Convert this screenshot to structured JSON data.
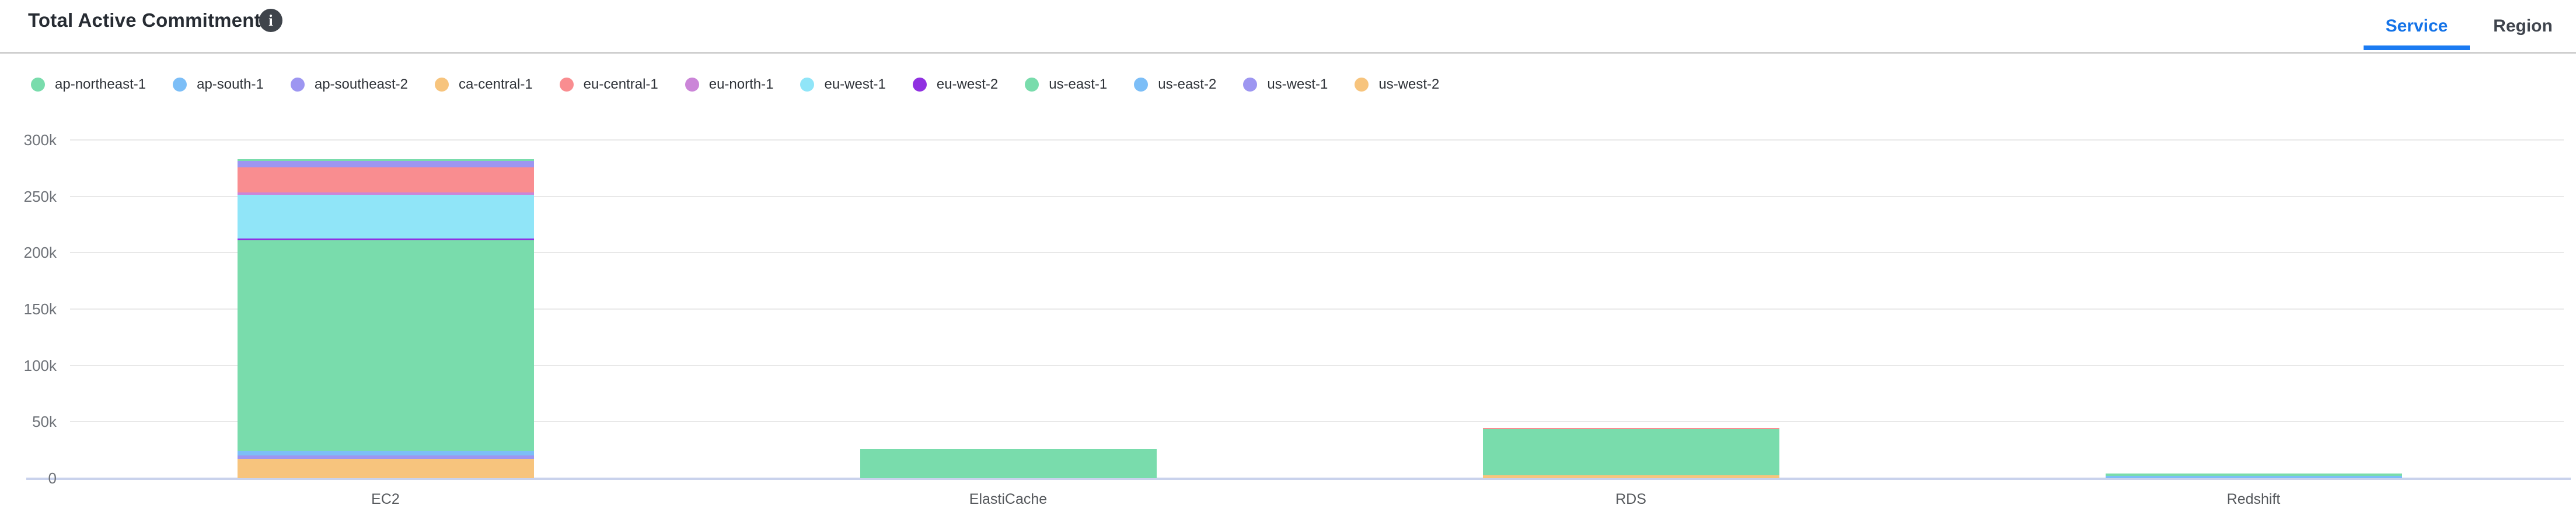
{
  "header": {
    "title": "Total Active Commitments",
    "info_icon": "i",
    "tabs": [
      {
        "label": "Service",
        "active": true
      },
      {
        "label": "Region",
        "active": false
      }
    ],
    "accent_color": "#1473e8"
  },
  "chart_data": {
    "type": "bar",
    "stacked": true,
    "title": "Total Active Commitments",
    "categories": [
      "EC2",
      "ElastiCache",
      "RDS",
      "Redshift"
    ],
    "series": [
      {
        "name": "ap-northeast-1",
        "color": "#79dcac",
        "values": [
          1300,
          0,
          0,
          0
        ]
      },
      {
        "name": "ap-south-1",
        "color": "#7cbef7",
        "values": [
          0,
          0,
          0,
          0
        ]
      },
      {
        "name": "ap-southeast-2",
        "color": "#9d96f1",
        "values": [
          5800,
          0,
          0,
          0
        ]
      },
      {
        "name": "ca-central-1",
        "color": "#f7c47d",
        "values": [
          0,
          0,
          0,
          0
        ]
      },
      {
        "name": "eu-central-1",
        "color": "#f98d90",
        "values": [
          22300,
          0,
          1100,
          0
        ]
      },
      {
        "name": "eu-north-1",
        "color": "#cb85d8",
        "values": [
          2100,
          0,
          0,
          0
        ]
      },
      {
        "name": "eu-west-1",
        "color": "#90e5f8",
        "values": [
          38800,
          0,
          0,
          0
        ]
      },
      {
        "name": "eu-west-2",
        "color": "#9031e1",
        "values": [
          1700,
          0,
          0,
          0
        ]
      },
      {
        "name": "us-east-1",
        "color": "#79dcac",
        "values": [
          186500,
          26000,
          40700,
          1800
        ]
      },
      {
        "name": "us-east-2",
        "color": "#7cbef7",
        "values": [
          4300,
          0,
          0,
          2300
        ]
      },
      {
        "name": "us-west-1",
        "color": "#9d96f1",
        "values": [
          3000,
          0,
          0,
          0
        ]
      },
      {
        "name": "us-west-2",
        "color": "#f7c47d",
        "values": [
          17000,
          0,
          2600,
          0
        ]
      }
    ],
    "stack_order": "reverse-legend (last series at bottom)",
    "ylim": [
      0,
      300000
    ],
    "ytick_step": 50000,
    "ytick_labels": [
      "0",
      "50k",
      "100k",
      "150k",
      "200k",
      "250k",
      "300k"
    ],
    "grid": true,
    "legend_position": "top",
    "grid_color": "#e8e8e8",
    "baseline_color": "#c9d2ec"
  }
}
